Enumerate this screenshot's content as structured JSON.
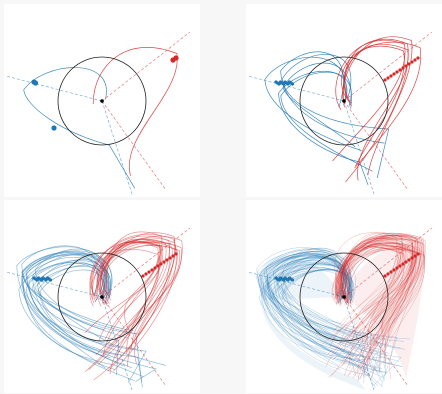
{
  "colors": {
    "blue": "#1f77b4",
    "red": "#d62728",
    "background": "#ffffff",
    "circle": "#222222"
  },
  "panels": [
    {
      "name": "panel-1",
      "trajectory_count": 2
    },
    {
      "name": "panel-2",
      "trajectory_count": 12
    },
    {
      "name": "panel-3",
      "trajectory_count": 40
    },
    {
      "name": "panel-4",
      "trajectory_count": 120
    }
  ]
}
